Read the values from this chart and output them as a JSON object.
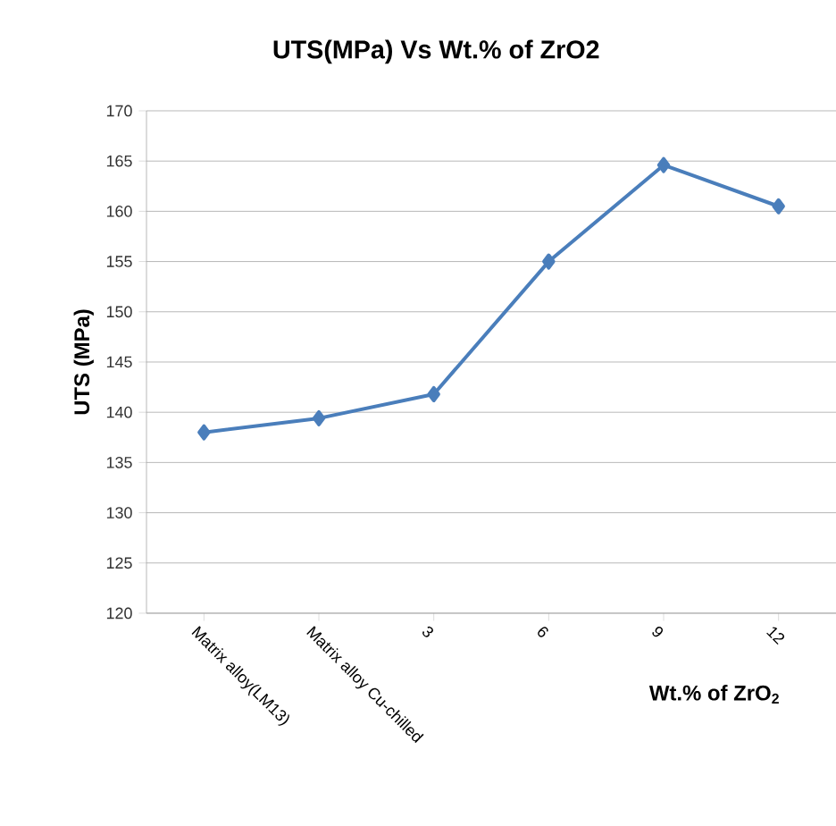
{
  "chart_data": {
    "type": "line",
    "title": "UTS(MPa) Vs Wt.% of ZrO2",
    "xlabel": "Wt.% of ZrO$_{2}$",
    "ylabel": "UTS (MPa)",
    "categories": [
      "Matrix alloy(LM13)",
      "Matrix alloy Cu-chilled",
      "3",
      "6",
      "9",
      "12"
    ],
    "series": [
      {
        "color": "#4a7ebb",
        "values": [
          138,
          139.4,
          141.8,
          155,
          164.6,
          160.5
        ]
      }
    ],
    "ylim": [
      120,
      170
    ],
    "yticks": [
      120,
      125,
      130,
      135,
      140,
      145,
      150,
      155,
      160,
      165,
      170
    ],
    "grid": "y",
    "marker": "diamond",
    "line_style": "solid"
  }
}
